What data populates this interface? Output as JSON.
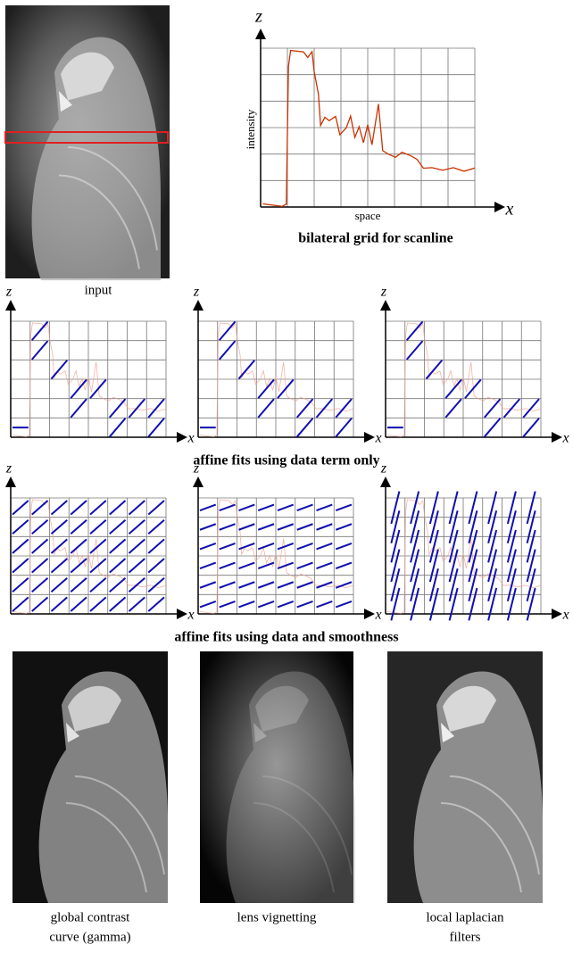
{
  "axis_labels": {
    "z": "z",
    "x": "x"
  },
  "scanline_plot": {
    "y_label": "intensity",
    "x_label": "space",
    "caption": "bilateral grid for scanline"
  },
  "input_caption": "input",
  "row_captions": [
    "affine fits using data term only",
    "affine fits using data and smoothness"
  ],
  "results": [
    {
      "caption_lines": [
        "global contrast",
        "curve (gamma)"
      ]
    },
    {
      "caption_lines": [
        "lens vignetting"
      ]
    },
    {
      "caption_lines": [
        "local laplacian",
        "filters"
      ]
    }
  ]
}
